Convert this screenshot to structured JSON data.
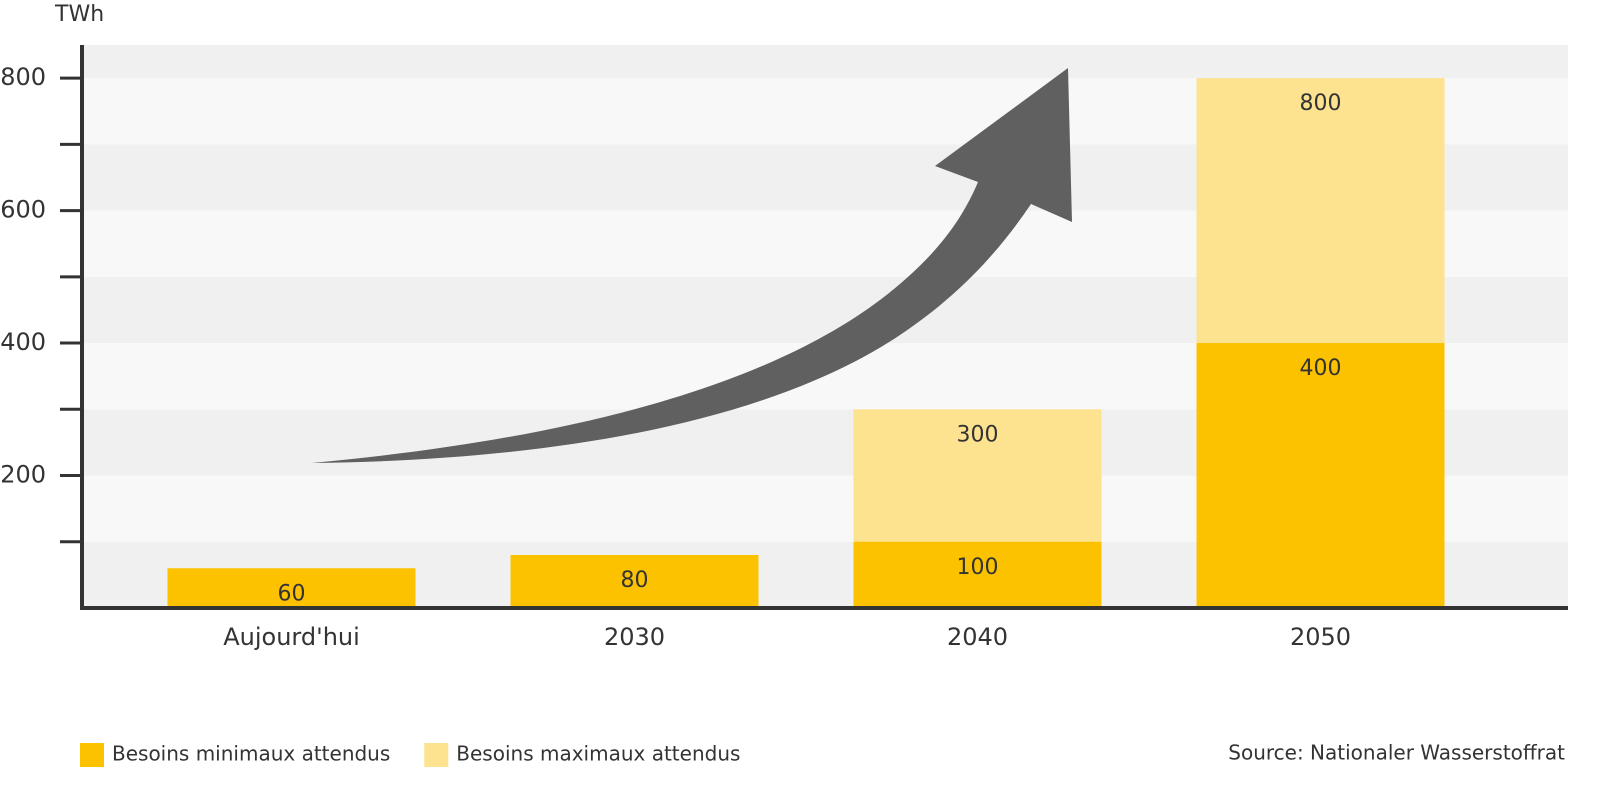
{
  "chart_data": {
    "type": "bar",
    "overlap": true,
    "y_label": "TWh",
    "categories": [
      "Aujourd'hui",
      "2030",
      "2040",
      "2050"
    ],
    "series": [
      {
        "name": "Besoins maximaux attendus",
        "color": "#fde290",
        "values": [
          null,
          null,
          300,
          800
        ]
      },
      {
        "name": "Besoins minimaux attendus",
        "color": "#fcc200",
        "values": [
          60,
          80,
          100,
          400
        ]
      }
    ],
    "ylim": [
      0,
      850
    ],
    "yticks": [
      200,
      400,
      600,
      800
    ],
    "yminorticks": [
      100,
      300,
      500,
      700
    ],
    "grid": true,
    "legend": "bottom-left",
    "source": "Source: Nationaler Wasserstoffrat"
  }
}
